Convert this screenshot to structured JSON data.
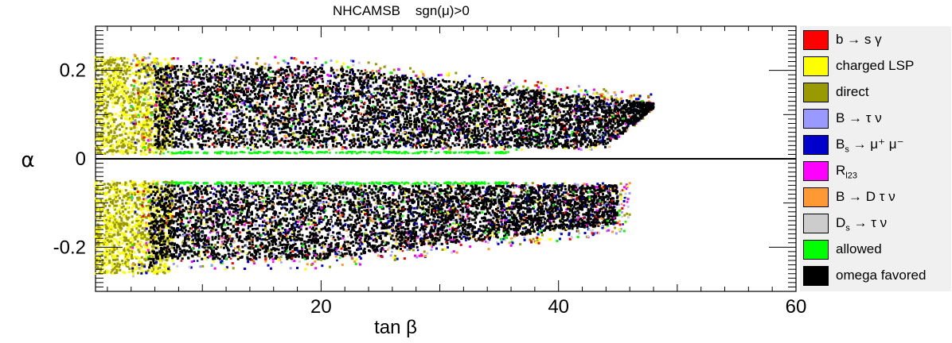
{
  "chart_data": {
    "type": "scatter",
    "title": "NHCAMSB    sgn(μ)>0",
    "xlabel": "tan β",
    "ylabel": "α",
    "xlim": [
      1,
      60
    ],
    "ylim": [
      -0.3,
      0.3
    ],
    "x_ticks": [
      20,
      40,
      60
    ],
    "y_ticks": [
      -0.2,
      0,
      0.2
    ],
    "x_tick_labels": [
      "20",
      "40",
      "60"
    ],
    "y_tick_labels": [
      "-0.2",
      "0",
      "0.2"
    ],
    "zero_line": true,
    "grid": false,
    "legend_position": "right",
    "series": [
      {
        "name": "b → s γ",
        "color": "#ff0000"
      },
      {
        "name": "charged LSP",
        "color": "#ffff00"
      },
      {
        "name": "direct",
        "color": "#999900"
      },
      {
        "name": "B → τ ν",
        "color": "#9999ff"
      },
      {
        "name": "B_s → μ⁺ μ⁻",
        "color": "#0000cc"
      },
      {
        "name": "R_l23",
        "color": "#ff00ff"
      },
      {
        "name": "B → D τ ν",
        "color": "#ff9933"
      },
      {
        "name": "D_s → τ ν",
        "color": "#cccccc"
      },
      {
        "name": "allowed",
        "color": "#00ff00"
      },
      {
        "name": "omega favored",
        "color": "#000000"
      }
    ],
    "regions": {
      "upper": {
        "alpha_range": [
          0.01,
          0.23
        ],
        "black_tanb_range": [
          6,
          48
        ],
        "black_tip": [
          48,
          0.12
        ],
        "yellow_tanb_range": [
          1,
          6
        ],
        "low_edge_alpha": 0.02
      },
      "lower": {
        "alpha_range": [
          -0.05,
          -0.26
        ],
        "black_tanb_range": [
          5.5,
          45
        ],
        "yellow_tanb_range": [
          1,
          6
        ],
        "high_edge_alpha": -0.055
      }
    }
  },
  "legend_items": [
    {
      "main": "b → s γ",
      "sub": "",
      "sup": "",
      "rest": "",
      "color": "#ff0000"
    },
    {
      "main": "charged LSP",
      "sub": "",
      "sup": "",
      "rest": "",
      "color": "#ffff00"
    },
    {
      "main": "direct",
      "sub": "",
      "sup": "",
      "rest": "",
      "color": "#999900"
    },
    {
      "main": "B → τ ν",
      "sub": "",
      "sup": "",
      "rest": "",
      "color": "#9999ff"
    },
    {
      "main": "B",
      "sub": "s",
      "sup": "",
      "rest": " → μ⁺ μ⁻",
      "color": "#0000cc"
    },
    {
      "main": "R",
      "sub": "l23",
      "sup": "",
      "rest": "",
      "color": "#ff00ff"
    },
    {
      "main": "B → D τ ν",
      "sub": "",
      "sup": "",
      "rest": "",
      "color": "#ff9933"
    },
    {
      "main": "D",
      "sub": "s",
      "sup": "",
      "rest": " → τ ν",
      "color": "#cccccc"
    },
    {
      "main": "allowed",
      "sub": "",
      "sup": "",
      "rest": "",
      "color": "#00ff00"
    },
    {
      "main": "omega favored",
      "sub": "",
      "sup": "",
      "rest": "",
      "color": "#000000"
    }
  ]
}
